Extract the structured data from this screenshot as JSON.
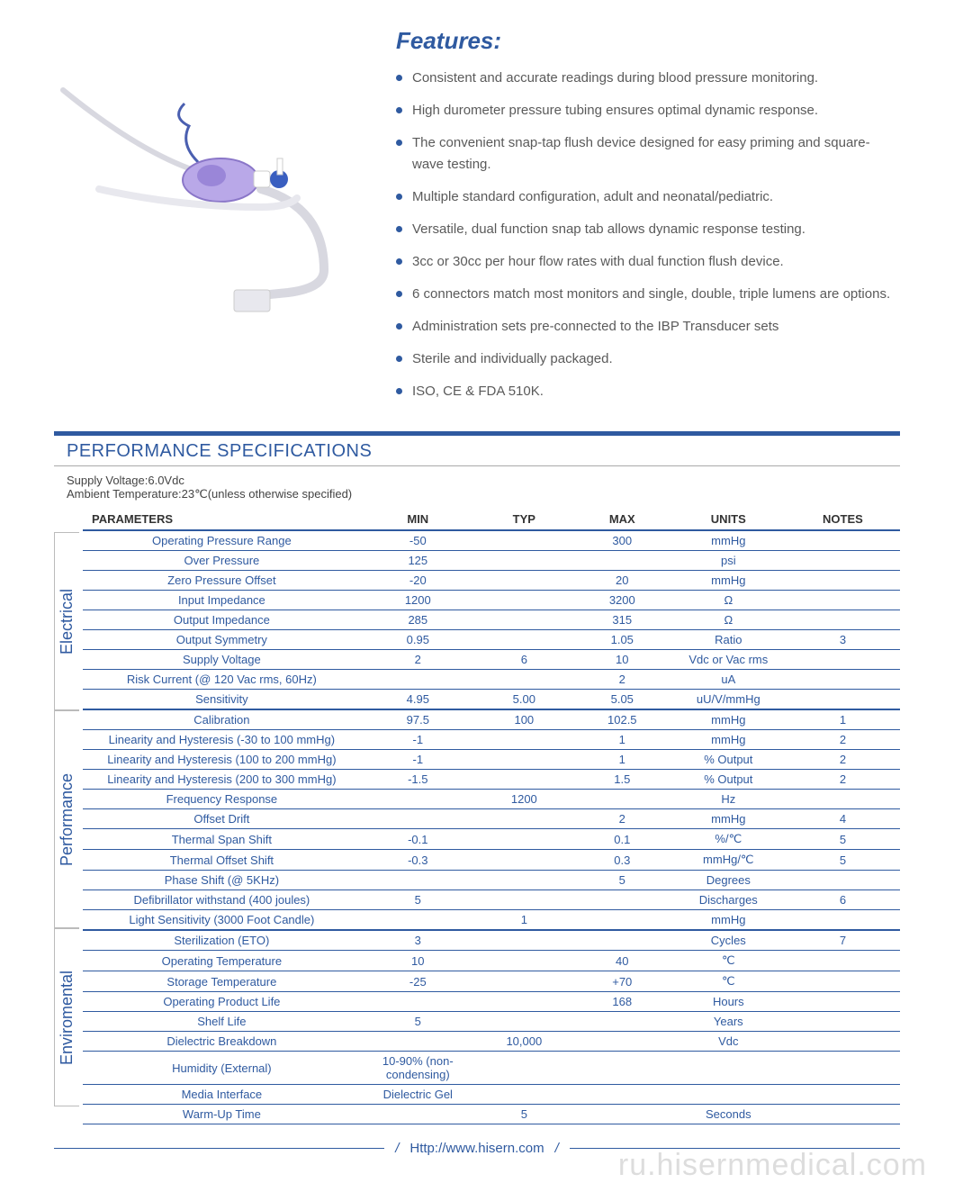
{
  "features": {
    "title": "Features:",
    "items": [
      "Consistent and accurate readings during blood pressure monitoring.",
      "High durometer pressure tubing ensures optimal dynamic response.",
      "The convenient snap-tap flush device designed for easy priming and square-wave testing.",
      "Multiple standard configuration, adult and neonatal/pediatric.",
      "Versatile, dual function snap tab allows dynamic response testing.",
      "3cc or 30cc per hour flow rates with dual function flush device.",
      "6 connectors match most monitors and single, double, triple lumens are options.",
      "Administration sets pre-connected to the IBP Transducer sets",
      "Sterile and individually packaged.",
      "ISO, CE & FDA 510K."
    ]
  },
  "spec": {
    "title": "PERFORMANCE SPECIFICATIONS",
    "meta1": "Supply Voltage:6.0Vdc",
    "meta2": "Ambient Temperature:23℃(unless otherwise specified)",
    "columns": [
      "PARAMETERS",
      "MIN",
      "TYP",
      "MAX",
      "UNITS",
      "NOTES"
    ],
    "col_widths": [
      "34%",
      "14%",
      "12%",
      "12%",
      "14%",
      "14%"
    ],
    "header_color": "#2f5aa0",
    "row_border_color": "#2f5aa0",
    "text_color": "#2f5aa0",
    "sections": [
      {
        "label": "Electrical",
        "rows": [
          {
            "p": "Operating Pressure Range",
            "min": "-50",
            "typ": "",
            "max": "300",
            "units": "mmHg",
            "notes": ""
          },
          {
            "p": "Over  Pressure",
            "min": "125",
            "typ": "",
            "max": "",
            "units": "psi",
            "notes": ""
          },
          {
            "p": "Zero Pressure Offset",
            "min": "-20",
            "typ": "",
            "max": "20",
            "units": "mmHg",
            "notes": ""
          },
          {
            "p": "Input Impedance",
            "min": "1200",
            "typ": "",
            "max": "3200",
            "units": "Ω",
            "notes": ""
          },
          {
            "p": "Output Impedance",
            "min": "285",
            "typ": "",
            "max": "315",
            "units": "Ω",
            "notes": ""
          },
          {
            "p": "Output Symmetry",
            "min": "0.95",
            "typ": "",
            "max": "1.05",
            "units": "Ratio",
            "notes": "3"
          },
          {
            "p": "Supply Voltage",
            "min": "2",
            "typ": "6",
            "max": "10",
            "units": "Vdc or Vac rms",
            "notes": ""
          },
          {
            "p": "Risk Current (@ 120 Vac rms, 60Hz)",
            "min": "",
            "typ": "",
            "max": "2",
            "units": "uA",
            "notes": ""
          },
          {
            "p": "Sensitivity",
            "min": "4.95",
            "typ": "5.00",
            "max": "5.05",
            "units": "uU/V/mmHg",
            "notes": ""
          }
        ]
      },
      {
        "label": "Performance",
        "rows": [
          {
            "p": "Calibration",
            "min": "97.5",
            "typ": "100",
            "max": "102.5",
            "units": "mmHg",
            "notes": "1"
          },
          {
            "p": "Linearity and Hysteresis (-30 to 100 mmHg)",
            "min": "-1",
            "typ": "",
            "max": "1",
            "units": "mmHg",
            "notes": "2"
          },
          {
            "p": "Linearity and Hysteresis (100 to 200 mmHg)",
            "min": "-1",
            "typ": "",
            "max": "1",
            "units": "% Output",
            "notes": "2"
          },
          {
            "p": "Linearity and Hysteresis (200 to 300 mmHg)",
            "min": "-1.5",
            "typ": "",
            "max": "1.5",
            "units": "% Output",
            "notes": "2"
          },
          {
            "p": "Frequency Response",
            "min": "",
            "typ": "1200",
            "max": "",
            "units": "Hz",
            "notes": ""
          },
          {
            "p": "Offset Drift",
            "min": "",
            "typ": "",
            "max": "2",
            "units": "mmHg",
            "notes": "4"
          },
          {
            "p": "Thermal Span Shift",
            "min": "-0.1",
            "typ": "",
            "max": "0.1",
            "units": "%/℃",
            "notes": "5"
          },
          {
            "p": "Thermal Offset Shift",
            "min": "-0.3",
            "typ": "",
            "max": "0.3",
            "units": "mmHg/℃",
            "notes": "5"
          },
          {
            "p": "Phase Shift (@ 5KHz)",
            "min": "",
            "typ": "",
            "max": "5",
            "units": "Degrees",
            "notes": ""
          },
          {
            "p": "Defibrillator withstand (400 joules)",
            "min": "5",
            "typ": "",
            "max": "",
            "units": "Discharges",
            "notes": "6"
          },
          {
            "p": "Light Sensitivity (3000 Foot Candle)",
            "min": "",
            "typ": "1",
            "max": "",
            "units": "mmHg",
            "notes": ""
          }
        ]
      },
      {
        "label": "Enviromental",
        "rows": [
          {
            "p": "Sterilization (ETO)",
            "min": "3",
            "typ": "",
            "max": "",
            "units": "Cycles",
            "notes": "7"
          },
          {
            "p": "Operating Temperature",
            "min": "10",
            "typ": "",
            "max": "40",
            "units": "℃",
            "notes": ""
          },
          {
            "p": "Storage Temperature",
            "min": "-25",
            "typ": "",
            "max": "+70",
            "units": "℃",
            "notes": ""
          },
          {
            "p": "Operating Product Life",
            "min": "",
            "typ": "",
            "max": "168",
            "units": "Hours",
            "notes": ""
          },
          {
            "p": "Shelf Life",
            "min": "5",
            "typ": "",
            "max": "",
            "units": "Years",
            "notes": ""
          },
          {
            "p": "Dielectric Breakdown",
            "min": "",
            "typ": "10,000",
            "max": "",
            "units": "Vdc",
            "notes": ""
          },
          {
            "p": "Humidity (External)",
            "min": "10-90% (non-condensing)",
            "typ": "",
            "max": "",
            "units": "",
            "notes": ""
          },
          {
            "p": "Media Interface",
            "min": "Dielectric Gel",
            "typ": "",
            "max": "",
            "units": "",
            "notes": ""
          },
          {
            "p": "Warm-Up Time",
            "min": "",
            "typ": "5",
            "max": "",
            "units": "Seconds",
            "notes": ""
          }
        ]
      }
    ]
  },
  "footer": {
    "url": "Http://www.hisern.com"
  },
  "watermark": "ru.hisernmedical.com",
  "colors": {
    "accent": "#2f5aa0",
    "text": "#5a5a5a",
    "bg": "#ffffff"
  }
}
